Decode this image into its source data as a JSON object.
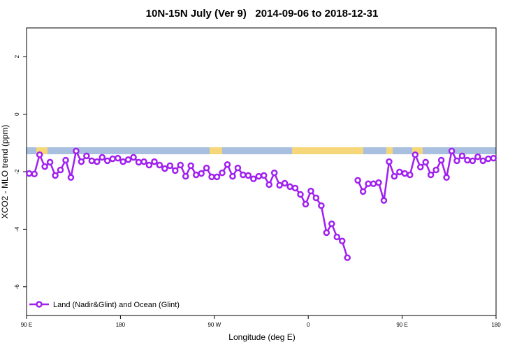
{
  "chart_data": {
    "type": "line",
    "title": "10N-15N July (Ver 9)   2014-09-06 to 2018-12-31",
    "x_label": "Longitude (deg E)",
    "y_label": "XCO2 - MLO trend (ppm)",
    "x": [
      92.5,
      97.5,
      102.5,
      107.5,
      112.5,
      117.5,
      122.5,
      127.5,
      132.5,
      137.5,
      142.5,
      147.5,
      152.5,
      157.5,
      162.5,
      167.5,
      172.5,
      177.5,
      182.5,
      187.5,
      192.5,
      197.5,
      202.5,
      207.5,
      212.5,
      217.5,
      222.5,
      227.5,
      232.5,
      237.5,
      242.5,
      247.5,
      252.5,
      257.5,
      262.5,
      267.5,
      272.5,
      277.5,
      282.5,
      287.5,
      292.5,
      297.5,
      302.5,
      307.5,
      312.5,
      317.5,
      322.5,
      327.5,
      332.5,
      337.5,
      342.5,
      347.5,
      352.5,
      357.5,
      362.5,
      367.5,
      372.5,
      377.5,
      382.5,
      387.5,
      392.5,
      397.5,
      402.5,
      407.5,
      412.5,
      417.5,
      422.5,
      427.5,
      432.5,
      437.5,
      442.5,
      447.5,
      452.5,
      457.5,
      462.5,
      467.5,
      472.5,
      477.5,
      482.5,
      487.5,
      492.5,
      497.5,
      502.5,
      507.5,
      512.5,
      517.5,
      522.5,
      527.5,
      532.5,
      537.5
    ],
    "series": [
      {
        "name": "Land (Nadir&Glint) and Ocean (Glint)",
        "color": "#a020f0",
        "values": [
          -2.06,
          -2.08,
          -1.41,
          -1.82,
          -1.67,
          -2.13,
          -1.94,
          -1.6,
          -2.2,
          -1.28,
          -1.65,
          -1.45,
          -1.62,
          -1.65,
          -1.5,
          -1.62,
          -1.55,
          -1.53,
          -1.65,
          -1.58,
          -1.5,
          -1.67,
          -1.65,
          -1.77,
          -1.65,
          -1.77,
          -1.89,
          -1.79,
          -1.96,
          -1.77,
          -2.16,
          -1.79,
          -2.11,
          -2.06,
          -1.87,
          -2.18,
          -2.18,
          -2.04,
          -1.75,
          -2.16,
          -1.87,
          -2.11,
          -2.13,
          -2.25,
          -2.16,
          -2.13,
          -2.45,
          -2.04,
          -2.47,
          -2.4,
          -2.52,
          -2.57,
          -2.79,
          -3.13,
          -2.67,
          -2.91,
          -3.18,
          -4.12,
          -3.81,
          -4.27,
          -4.41,
          -4.99,
          null,
          -2.3,
          -2.69,
          -2.42,
          -2.42,
          -2.38,
          -3.0,
          -1.65,
          -2.16,
          -2.01,
          -2.06,
          -2.11,
          -1.41,
          -1.84,
          -1.67,
          -2.11,
          -1.94,
          -1.6,
          -2.2,
          -1.28,
          -1.62,
          -1.45,
          -1.6,
          -1.62,
          -1.48,
          -1.62,
          -1.55,
          -1.53
        ]
      }
    ],
    "xlim": [
      90,
      540
    ],
    "xticks": [
      {
        "value": 90,
        "label": "90 E"
      },
      180,
      {
        "value": 270,
        "label": "90 W"
      },
      {
        "value": 360,
        "label": "0"
      },
      {
        "value": 450,
        "label": "90 E"
      },
      {
        "value": 540,
        "label": "180"
      }
    ],
    "ylim": [
      -7,
      3
    ],
    "yticks": [
      -6,
      -4,
      -2,
      0,
      2
    ],
    "legend": "lower left"
  }
}
